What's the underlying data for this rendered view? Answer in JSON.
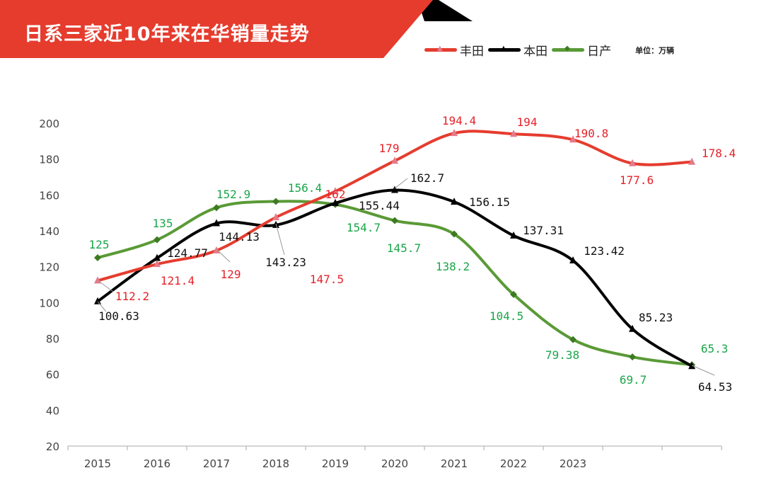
{
  "chart_data": {
    "type": "line",
    "title": "日系三家近10年来在华销量走势",
    "unit": "单位：万辆",
    "categories": [
      "2015",
      "2016",
      "2017",
      "2018",
      "2019",
      "2020",
      "2021",
      "2022",
      "2023",
      "",
      ""
    ],
    "ylim": [
      20,
      200
    ],
    "yticks": [
      20,
      40,
      60,
      80,
      100,
      120,
      140,
      160,
      180,
      200
    ],
    "grid": false,
    "legend_position": "top-right",
    "series": [
      {
        "name": "丰田",
        "color": "#e53c2e",
        "label_color": "#e5222a",
        "marker": "triangle",
        "values": [
          112.2,
          121.4,
          129,
          147.5,
          162,
          179,
          194.4,
          194,
          190.8,
          177.6,
          178.4
        ],
        "labels": [
          "112.2",
          "121.4",
          "129",
          "147.5",
          "162",
          "179",
          "194.4",
          "194",
          "190.8",
          "177.6",
          "178.4"
        ]
      },
      {
        "name": "本田",
        "color": "#000000",
        "label_color": "#111111",
        "marker": "triangle",
        "values": [
          100.63,
          124.77,
          144.13,
          143.23,
          155.44,
          162.7,
          156.15,
          137.31,
          123.42,
          85.23,
          64.53
        ],
        "labels": [
          "100.63",
          "124.77",
          "144.13",
          "143.23",
          "155.44",
          "162.7",
          "156.15",
          "137.31",
          "123.42",
          "85.23",
          "64.53"
        ]
      },
      {
        "name": "日产",
        "color": "#5a9a36",
        "label_color": "#1aa64a",
        "marker": "diamond",
        "values": [
          125,
          135,
          152.9,
          156.4,
          154.7,
          145.7,
          138.2,
          104.5,
          79.38,
          69.7,
          65.3
        ],
        "labels": [
          "125",
          "135",
          "152.9",
          "156.4",
          "154.7",
          "145.7",
          "138.2",
          "104.5",
          "79.38",
          "69.7",
          "65.3"
        ]
      }
    ]
  }
}
